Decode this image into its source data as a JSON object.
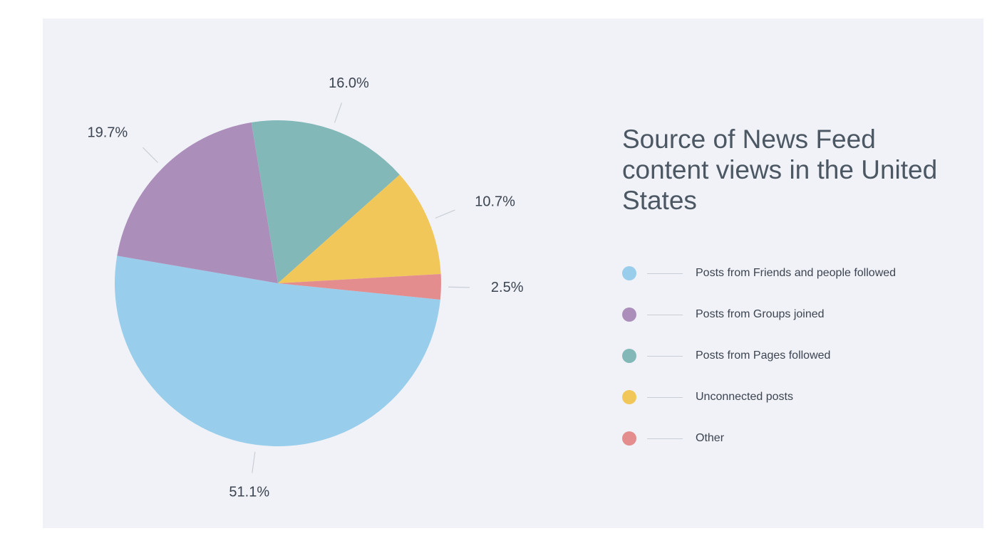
{
  "chart_data": {
    "type": "pie",
    "title": "Source of News Feed content views in the United States",
    "slices": [
      {
        "name": "Posts from Friends and people followed",
        "value": 51.1,
        "label": "51.1%",
        "color": "#98cdeb"
      },
      {
        "name": "Posts from Groups joined",
        "value": 19.7,
        "label": "19.7%",
        "color": "#ab8fba"
      },
      {
        "name": "Posts from Pages followed",
        "value": 16.0,
        "label": "16.0%",
        "color": "#82b8b8"
      },
      {
        "name": "Unconnected posts",
        "value": 10.7,
        "label": "10.7%",
        "color": "#f1c75a"
      },
      {
        "name": "Other",
        "value": 2.5,
        "label": "2.5%",
        "color": "#e38d8f"
      }
    ],
    "legend_placement": "right"
  }
}
